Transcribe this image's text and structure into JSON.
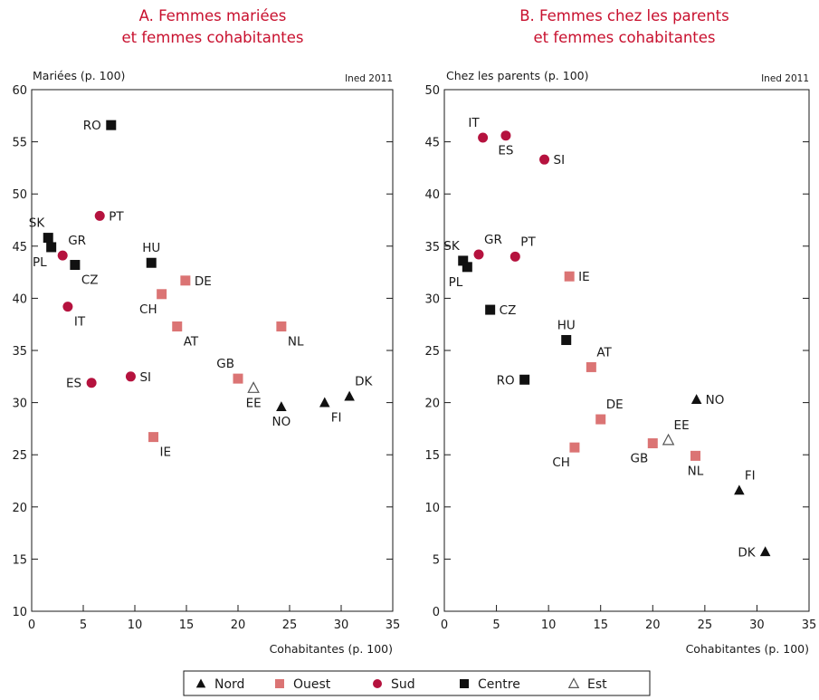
{
  "colors": {
    "Nord": "#111111",
    "Ouest": "#db7474",
    "Sud": "#b5123e",
    "Centre": "#111111",
    "Est": "#555555",
    "title": "#c8102e"
  },
  "legend": [
    {
      "group": "Nord",
      "marker": "triangle",
      "label": "Nord"
    },
    {
      "group": "Ouest",
      "marker": "square",
      "label": "Ouest"
    },
    {
      "group": "Sud",
      "marker": "circle",
      "label": "Sud"
    },
    {
      "group": "Centre",
      "marker": "square",
      "label": "Centre"
    },
    {
      "group": "Est",
      "marker": "triangle-open",
      "label": "Est"
    }
  ],
  "chart_data": [
    {
      "type": "scatter",
      "title_line1": "A. Femmes mariées",
      "title_line2": "et femmes cohabitantes",
      "ylabel": "Mariées (p. 100)",
      "xlabel": "Cohabitantes (p. 100)",
      "credit": "Ined 2011",
      "xlim": [
        0,
        35
      ],
      "ylim": [
        10,
        60
      ],
      "xticks": [
        0,
        5,
        10,
        15,
        20,
        25,
        30,
        35
      ],
      "yticks": [
        10,
        15,
        20,
        25,
        30,
        35,
        40,
        45,
        50,
        55,
        60
      ],
      "points": [
        {
          "label": "RO",
          "group": "Centre",
          "x": 7.7,
          "y": 56.6,
          "pos": "left"
        },
        {
          "label": "PT",
          "group": "Sud",
          "x": 6.6,
          "y": 47.9,
          "pos": "right"
        },
        {
          "label": "SK",
          "group": "Centre",
          "x": 1.6,
          "y": 45.8,
          "pos": "above-left"
        },
        {
          "label": "PL",
          "group": "Centre",
          "x": 1.9,
          "y": 44.9,
          "pos": "below-left"
        },
        {
          "label": "GR",
          "group": "Sud",
          "x": 3.0,
          "y": 44.1,
          "pos": "above-right"
        },
        {
          "label": "CZ",
          "group": "Centre",
          "x": 4.2,
          "y": 43.2,
          "pos": "below-right"
        },
        {
          "label": "HU",
          "group": "Centre",
          "x": 11.6,
          "y": 43.4,
          "pos": "above"
        },
        {
          "label": "DE",
          "group": "Ouest",
          "x": 14.9,
          "y": 41.7,
          "pos": "right"
        },
        {
          "label": "CH",
          "group": "Ouest",
          "x": 12.6,
          "y": 40.4,
          "pos": "below-left"
        },
        {
          "label": "IT",
          "group": "Sud",
          "x": 3.5,
          "y": 39.2,
          "pos": "below-right"
        },
        {
          "label": "AT",
          "group": "Ouest",
          "x": 14.1,
          "y": 37.3,
          "pos": "below-right"
        },
        {
          "label": "NL",
          "group": "Ouest",
          "x": 24.2,
          "y": 37.3,
          "pos": "below-right"
        },
        {
          "label": "GB",
          "group": "Ouest",
          "x": 20.0,
          "y": 32.3,
          "pos": "above-left"
        },
        {
          "label": "SI",
          "group": "Sud",
          "x": 9.6,
          "y": 32.5,
          "pos": "right"
        },
        {
          "label": "ES",
          "group": "Sud",
          "x": 5.8,
          "y": 31.9,
          "pos": "left"
        },
        {
          "label": "EE",
          "group": "Est",
          "x": 21.5,
          "y": 31.4,
          "pos": "below"
        },
        {
          "label": "NO",
          "group": "Nord",
          "x": 24.2,
          "y": 29.6,
          "pos": "below"
        },
        {
          "label": "FI",
          "group": "Nord",
          "x": 28.4,
          "y": 30.0,
          "pos": "below-right"
        },
        {
          "label": "DK",
          "group": "Nord",
          "x": 30.8,
          "y": 30.6,
          "pos": "above-right"
        },
        {
          "label": "IE",
          "group": "Ouest",
          "x": 11.8,
          "y": 26.7,
          "pos": "below-right"
        }
      ]
    },
    {
      "type": "scatter",
      "title_line1": "B. Femmes chez les parents",
      "title_line2": "et femmes cohabitantes",
      "ylabel": "Chez les parents (p. 100)",
      "xlabel": "Cohabitantes (p. 100)",
      "credit": "Ined 2011",
      "xlim": [
        0,
        35
      ],
      "ylim": [
        0,
        50
      ],
      "xticks": [
        0,
        5,
        10,
        15,
        20,
        25,
        30,
        35
      ],
      "yticks": [
        0,
        5,
        10,
        15,
        20,
        25,
        30,
        35,
        40,
        45,
        50
      ],
      "points": [
        {
          "label": "IT",
          "group": "Sud",
          "x": 3.7,
          "y": 45.4,
          "pos": "above-left"
        },
        {
          "label": "ES",
          "group": "Sud",
          "x": 5.9,
          "y": 45.6,
          "pos": "below"
        },
        {
          "label": "SI",
          "group": "Sud",
          "x": 9.6,
          "y": 43.3,
          "pos": "right"
        },
        {
          "label": "SK",
          "group": "Centre",
          "x": 1.8,
          "y": 33.6,
          "pos": "above-left"
        },
        {
          "label": "GR",
          "group": "Sud",
          "x": 3.3,
          "y": 34.2,
          "pos": "above-right"
        },
        {
          "label": "PT",
          "group": "Sud",
          "x": 6.8,
          "y": 34.0,
          "pos": "above-right"
        },
        {
          "label": "PL",
          "group": "Centre",
          "x": 2.2,
          "y": 33.0,
          "pos": "below-left"
        },
        {
          "label": "IE",
          "group": "Ouest",
          "x": 12.0,
          "y": 32.1,
          "pos": "right"
        },
        {
          "label": "CZ",
          "group": "Centre",
          "x": 4.4,
          "y": 28.9,
          "pos": "right"
        },
        {
          "label": "HU",
          "group": "Centre",
          "x": 11.7,
          "y": 26.0,
          "pos": "above"
        },
        {
          "label": "AT",
          "group": "Ouest",
          "x": 14.1,
          "y": 23.4,
          "pos": "above-right"
        },
        {
          "label": "RO",
          "group": "Centre",
          "x": 7.7,
          "y": 22.2,
          "pos": "left"
        },
        {
          "label": "NO",
          "group": "Nord",
          "x": 24.2,
          "y": 20.3,
          "pos": "right"
        },
        {
          "label": "DE",
          "group": "Ouest",
          "x": 15.0,
          "y": 18.4,
          "pos": "above-right"
        },
        {
          "label": "EE",
          "group": "Est",
          "x": 21.5,
          "y": 16.4,
          "pos": "above-right"
        },
        {
          "label": "GB",
          "group": "Ouest",
          "x": 20.0,
          "y": 16.1,
          "pos": "below-left"
        },
        {
          "label": "CH",
          "group": "Ouest",
          "x": 12.5,
          "y": 15.7,
          "pos": "below-left"
        },
        {
          "label": "NL",
          "group": "Ouest",
          "x": 24.1,
          "y": 14.9,
          "pos": "below"
        },
        {
          "label": "FI",
          "group": "Nord",
          "x": 28.3,
          "y": 11.6,
          "pos": "above-right"
        },
        {
          "label": "DK",
          "group": "Nord",
          "x": 30.8,
          "y": 5.7,
          "pos": "left"
        }
      ]
    }
  ]
}
